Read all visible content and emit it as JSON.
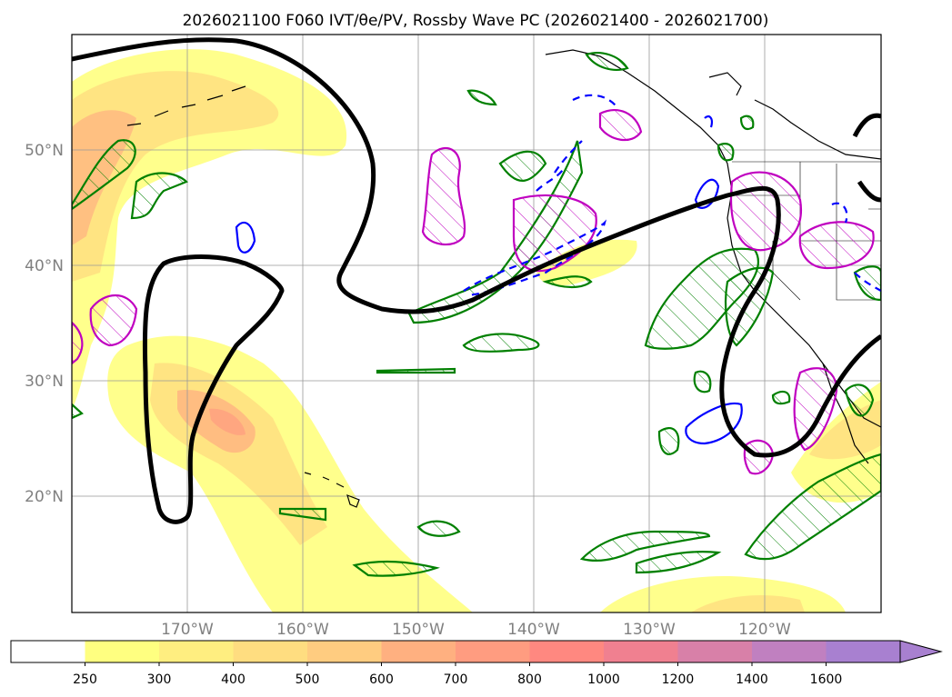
{
  "title": "2026021100 F060 IVT/θe/PV, Rossby Wave PC (2026021400 - 2026021700)",
  "map": {
    "lat_ticks": [
      {
        "value": 50,
        "label": "50°N"
      },
      {
        "value": 40,
        "label": "40°N"
      },
      {
        "value": 30,
        "label": "30°N"
      },
      {
        "value": 20,
        "label": "20°N"
      }
    ],
    "lon_ticks": [
      {
        "value": -170,
        "label": "170°W"
      },
      {
        "value": -160,
        "label": "160°W"
      },
      {
        "value": -150,
        "label": "150°W"
      },
      {
        "value": -140,
        "label": "140°W"
      },
      {
        "value": -130,
        "label": "130°W"
      },
      {
        "value": -120,
        "label": "120°W"
      }
    ],
    "extent": {
      "lon": [
        -180,
        -110
      ],
      "lat": [
        10,
        60
      ]
    },
    "grid": true
  },
  "colorbar": {
    "levels": [
      "250",
      "300",
      "400",
      "500",
      "600",
      "700",
      "800",
      "1000",
      "1200",
      "1400",
      "1600"
    ],
    "colors": [
      "#ffffff",
      "#ffff80",
      "#ffee80",
      "#ffdd80",
      "#ffcc80",
      "#ffb080",
      "#ff9c80",
      "#ff8880",
      "#f08090",
      "#d880a8",
      "#c080c0",
      "#a880d0"
    ],
    "extend": "max"
  },
  "layers": {
    "ivt_fill": "IVT shading (yellow/orange)",
    "pv_contour_color": "#000000",
    "pos_anomaly_color": "#008000",
    "neg_anomaly_color": "#0000ff",
    "theta_color": "#c000c0"
  }
}
